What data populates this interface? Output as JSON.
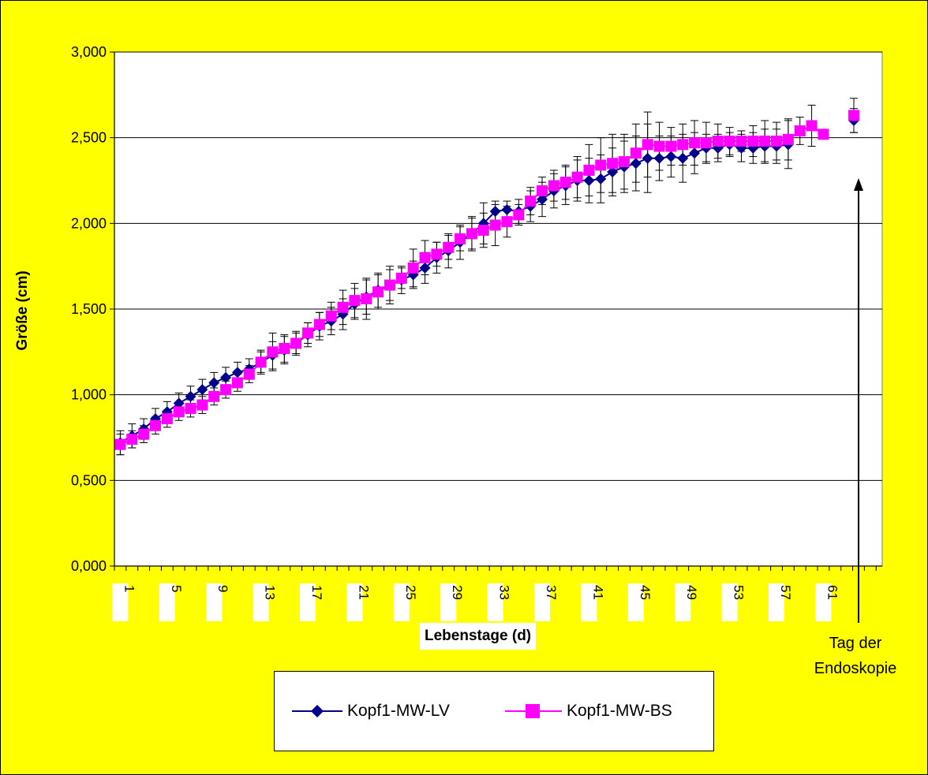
{
  "chart_data": {
    "type": "line",
    "xlabel": "Lebenstage (d)",
    "ylabel": "Größe (cm)",
    "ylim": [
      0,
      3
    ],
    "yticks": [
      "0,000",
      "0,500",
      "1,000",
      "1,500",
      "2,000",
      "2,500",
      "3,000"
    ],
    "xticks": [
      "1",
      "5",
      "9",
      "13",
      "17",
      "21",
      "25",
      "29",
      "33",
      "37",
      "41",
      "45",
      "49",
      "53",
      "57",
      "61"
    ],
    "grid": "horizontal",
    "legend_position": "bottom",
    "annotation": [
      "Tag der",
      "Endoskopie"
    ],
    "series": [
      {
        "name": "Kopf1-MW-LV",
        "color": "#00008b",
        "marker": "diamond",
        "x": [
          1,
          2,
          3,
          4,
          5,
          6,
          7,
          8,
          9,
          10,
          11,
          12,
          13,
          14,
          15,
          16,
          17,
          18,
          19,
          20,
          21,
          22,
          23,
          24,
          25,
          26,
          27,
          28,
          29,
          30,
          31,
          32,
          33,
          34,
          35,
          36,
          37,
          38,
          39,
          40,
          41,
          42,
          43,
          44,
          45,
          46,
          47,
          48,
          49,
          50,
          51,
          52,
          53,
          54,
          55,
          56,
          57,
          58
        ],
        "y": [
          0.72,
          0.76,
          0.8,
          0.86,
          0.9,
          0.95,
          0.99,
          1.03,
          1.07,
          1.1,
          1.13,
          1.15,
          1.19,
          1.23,
          1.26,
          1.3,
          1.35,
          1.4,
          1.43,
          1.47,
          1.53,
          1.57,
          1.61,
          1.64,
          1.67,
          1.7,
          1.74,
          1.8,
          1.84,
          1.89,
          1.94,
          2.0,
          2.07,
          2.08,
          2.07,
          2.1,
          2.14,
          2.19,
          2.22,
          2.25,
          2.25,
          2.26,
          2.3,
          2.33,
          2.35,
          2.38,
          2.38,
          2.39,
          2.38,
          2.41,
          2.44,
          2.44,
          2.46,
          2.44,
          2.44,
          2.45,
          2.45,
          2.46
        ],
        "err": [
          0.07,
          0.07,
          0.06,
          0.06,
          0.06,
          0.06,
          0.06,
          0.06,
          0.06,
          0.06,
          0.06,
          0.06,
          0.07,
          0.08,
          0.08,
          0.07,
          0.07,
          0.08,
          0.08,
          0.09,
          0.09,
          0.1,
          0.1,
          0.09,
          0.08,
          0.08,
          0.09,
          0.09,
          0.1,
          0.1,
          0.1,
          0.12,
          0.06,
          0.05,
          0.07,
          0.09,
          0.1,
          0.1,
          0.11,
          0.12,
          0.13,
          0.14,
          0.14,
          0.15,
          0.16,
          0.2,
          0.13,
          0.12,
          0.14,
          0.12,
          0.08,
          0.08,
          0.07,
          0.08,
          0.09,
          0.1,
          0.1,
          0.14
        ],
        "endoscopy": {
          "y": 2.6,
          "err": 0.07
        }
      },
      {
        "name": "Kopf1-MW-BS",
        "color": "#ff00ff",
        "marker": "square",
        "x": [
          1,
          2,
          3,
          4,
          5,
          6,
          7,
          8,
          9,
          10,
          11,
          12,
          13,
          14,
          15,
          16,
          17,
          18,
          19,
          20,
          21,
          22,
          23,
          24,
          25,
          26,
          27,
          28,
          29,
          30,
          31,
          32,
          33,
          34,
          35,
          36,
          37,
          38,
          39,
          40,
          41,
          42,
          43,
          44,
          45,
          46,
          47,
          48,
          49,
          50,
          51,
          52,
          53,
          54,
          55,
          56,
          57,
          58,
          59,
          60,
          61
        ],
        "y": [
          0.71,
          0.74,
          0.77,
          0.82,
          0.86,
          0.9,
          0.92,
          0.94,
          0.99,
          1.03,
          1.07,
          1.12,
          1.19,
          1.25,
          1.27,
          1.3,
          1.36,
          1.41,
          1.46,
          1.51,
          1.55,
          1.56,
          1.6,
          1.64,
          1.68,
          1.74,
          1.8,
          1.82,
          1.86,
          1.91,
          1.94,
          1.96,
          1.99,
          2.01,
          2.05,
          2.13,
          2.19,
          2.22,
          2.24,
          2.27,
          2.31,
          2.34,
          2.35,
          2.36,
          2.41,
          2.46,
          2.45,
          2.45,
          2.46,
          2.47,
          2.47,
          2.48,
          2.48,
          2.48,
          2.48,
          2.48,
          2.48,
          2.49,
          2.54,
          2.57,
          2.52
        ],
        "err": [
          0.06,
          0.05,
          0.05,
          0.05,
          0.05,
          0.05,
          0.05,
          0.05,
          0.05,
          0.05,
          0.05,
          0.05,
          0.06,
          0.11,
          0.08,
          0.06,
          0.06,
          0.07,
          0.08,
          0.1,
          0.1,
          0.12,
          0.1,
          0.11,
          0.06,
          0.11,
          0.1,
          0.07,
          0.07,
          0.07,
          0.09,
          0.1,
          0.12,
          0.09,
          0.06,
          0.08,
          0.08,
          0.09,
          0.1,
          0.12,
          0.15,
          0.16,
          0.17,
          0.16,
          0.17,
          0.19,
          0.14,
          0.11,
          0.12,
          0.13,
          0.12,
          0.1,
          0.08,
          0.06,
          0.09,
          0.12,
          0.11,
          0.12,
          0.08,
          0.12,
          0.0
        ],
        "endoscopy": {
          "y": 2.63,
          "err": 0.1
        }
      }
    ]
  }
}
